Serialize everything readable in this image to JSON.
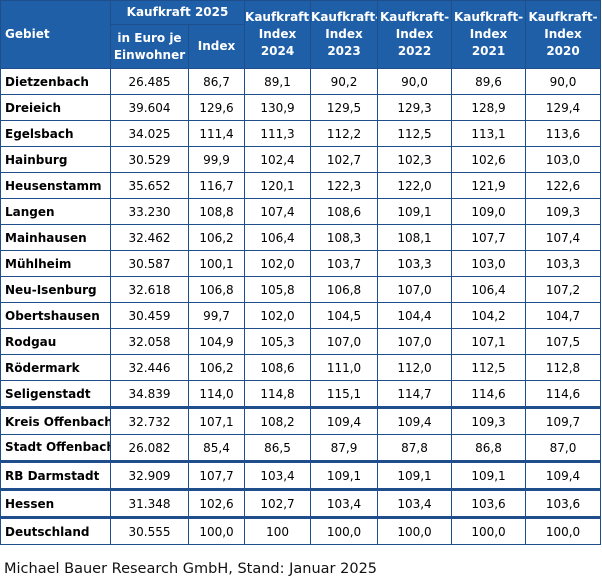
{
  "header": {
    "gebiet": "Gebiet",
    "kaufkraft2025": "Kaufkraft 2025",
    "euro": "in Euro je Einwohner",
    "index": "Index",
    "ki2024": "Kaufkraft-Index 2024",
    "ki2023": "Kaufkraft-Index 2023",
    "ki2022": "Kaufkraft-Index 2022",
    "ki2021": "Kaufkraft-Index 2021",
    "ki2020": "Kaufkraft-Index 2020"
  },
  "rows": [
    [
      "Dietzenbach",
      "26.485",
      "86,7",
      "89,1",
      "90,2",
      "90,0",
      "89,6",
      "90,0"
    ],
    [
      "Dreieich",
      "39.604",
      "129,6",
      "130,9",
      "129,5",
      "129,3",
      "128,9",
      "129,4"
    ],
    [
      "Egelsbach",
      "34.025",
      "111,4",
      "111,3",
      "112,2",
      "112,5",
      "113,1",
      "113,6"
    ],
    [
      "Hainburg",
      "30.529",
      "99,9",
      "102,4",
      "102,7",
      "102,3",
      "102,6",
      "103,0"
    ],
    [
      "Heusenstamm",
      "35.652",
      "116,7",
      "120,1",
      "122,3",
      "122,0",
      "121,9",
      "122,6"
    ],
    [
      "Langen",
      "33.230",
      "108,8",
      "107,4",
      "108,6",
      "109,1",
      "109,0",
      "109,3"
    ],
    [
      "Mainhausen",
      "32.462",
      "106,2",
      "106,4",
      "108,3",
      "108,1",
      "107,7",
      "107,4"
    ],
    [
      "Mühlheim",
      "30.587",
      "100,1",
      "102,0",
      "103,7",
      "103,3",
      "103,0",
      "103,3"
    ],
    [
      "Neu-Isenburg",
      "32.618",
      "106,8",
      "105,8",
      "106,8",
      "107,0",
      "106,4",
      "107,2"
    ],
    [
      "Obertshausen",
      "30.459",
      "99,7",
      "102,0",
      "104,5",
      "104,4",
      "104,2",
      "104,7"
    ],
    [
      "Rodgau",
      "32.058",
      "104,9",
      "105,3",
      "107,0",
      "107,0",
      "107,1",
      "107,5"
    ],
    [
      "Rödermark",
      "32.446",
      "106,2",
      "108,6",
      "111,0",
      "112,0",
      "112,5",
      "112,8"
    ],
    [
      "Seligenstadt",
      "34.839",
      "114,0",
      "114,8",
      "115,1",
      "114,7",
      "114,6",
      "114,6"
    ],
    [
      "Kreis Offenbach",
      "32.732",
      "107,1",
      "108,2",
      "109,4",
      "109,4",
      "109,3",
      "109,7"
    ],
    [
      "Stadt Offenbach",
      "26.082",
      "85,4",
      "86,5",
      "87,9",
      "87,8",
      "86,8",
      "87,0"
    ],
    [
      "RB Darmstadt",
      "32.909",
      "107,7",
      "103,4",
      "109,1",
      "109,1",
      "109,1",
      "109,4"
    ],
    [
      "Hessen",
      "31.348",
      "102,6",
      "102,7",
      "103,4",
      "103,4",
      "103,6",
      "103,6"
    ],
    [
      "Deutschland",
      "30.555",
      "100,0",
      "100",
      "100,0",
      "100,0",
      "100,0",
      "100,0"
    ]
  ],
  "source": "Michael Bauer Research GmbH, Stand: Januar 2025"
}
